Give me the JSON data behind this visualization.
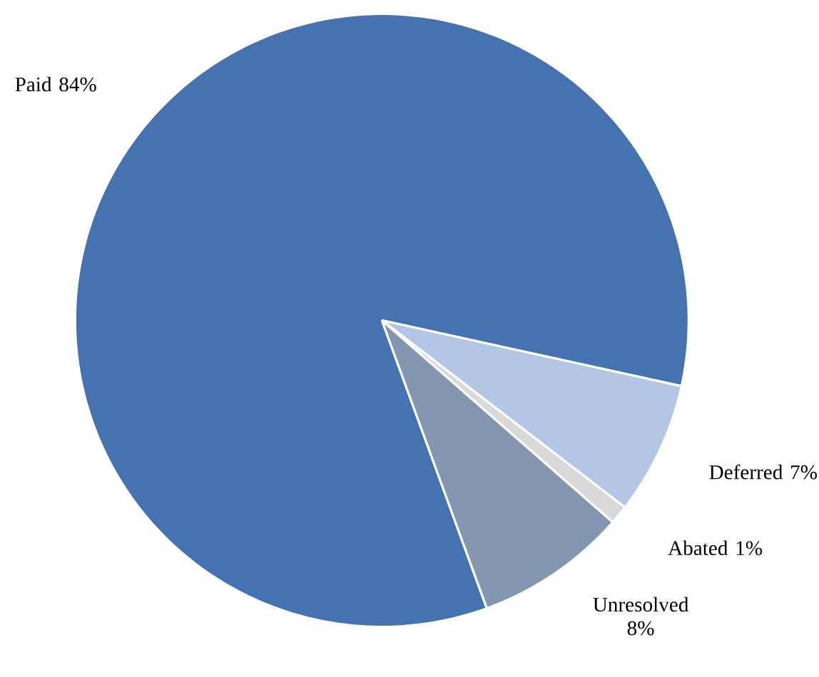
{
  "chart_data": {
    "type": "pie",
    "categories": [
      "Paid",
      "Deferred",
      "Abated",
      "Unresolved"
    ],
    "values": [
      84,
      7,
      1,
      8
    ],
    "value_labels": [
      "84%",
      "7%",
      "1%",
      "8%"
    ],
    "colors": [
      "#4572b1",
      "#b3c6e6",
      "#d9d9d9",
      "#8497b0"
    ]
  }
}
